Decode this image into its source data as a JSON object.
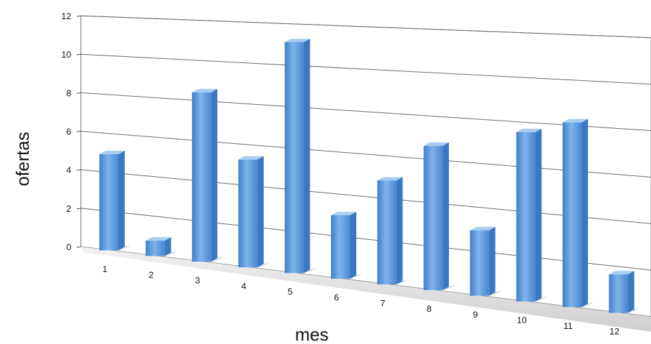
{
  "chart_data": {
    "type": "bar",
    "style": "3d-column",
    "title": "",
    "xlabel": "mes",
    "ylabel": "ofertas",
    "categories": [
      "1",
      "2",
      "3",
      "4",
      "5",
      "6",
      "7",
      "8",
      "9",
      "10",
      "11",
      "12"
    ],
    "values": [
      5,
      0.8,
      8.8,
      5.6,
      12,
      3.3,
      5.4,
      7.5,
      3.4,
      8.8,
      9.6,
      2
    ],
    "yticks": [
      "0",
      "2",
      "4",
      "6",
      "8",
      "10",
      "12"
    ],
    "ylim": [
      0,
      12
    ],
    "grid": true,
    "legend": "none",
    "colors": {
      "bar": "#5b9bd5",
      "bar_dark": "#3a78c2",
      "bar_light": "#a9cdf0",
      "grid": "#555555",
      "floor": "#d9d9d9"
    }
  }
}
